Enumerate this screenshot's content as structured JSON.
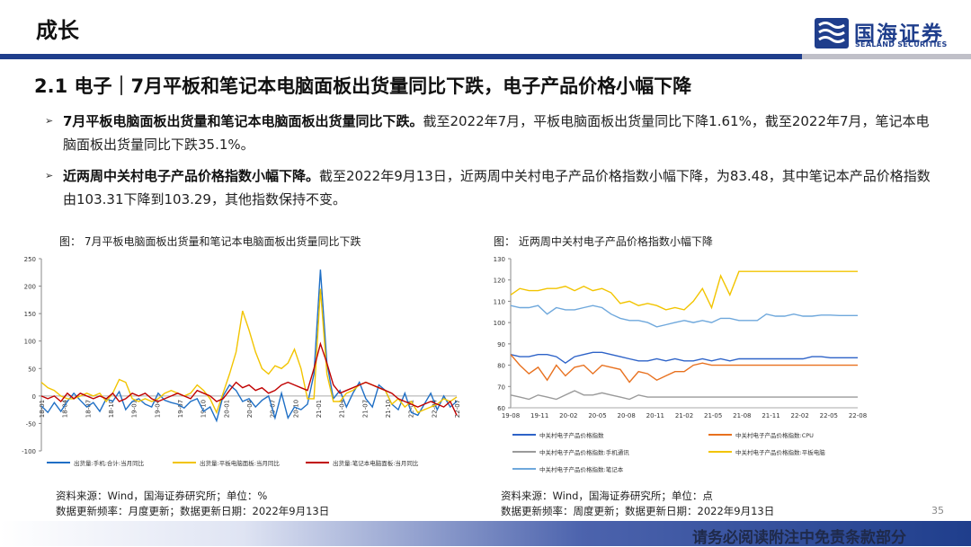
{
  "header": {
    "section": "成长",
    "logo_cn": "国海证券",
    "logo_en": "SEALAND SECURITIES"
  },
  "title": "2.1 电子｜7月平板和笔记本电脑面板出货量同比下跌，电子产品价格小幅下降",
  "bullets": [
    {
      "bold": "7月平板电脑面板出货量和笔记本电脑面板出货量同比下跌。",
      "text": "截至2022年7月，平板电脑面板出货量同比下降1.61%，截至2022年7月，笔记本电脑面板出货量同比下跌35.1%。"
    },
    {
      "bold": "近两周中关村电子产品价格指数小幅下降。",
      "text": "截至2022年9月13日，近两周中关村电子产品价格指数小幅下降，为83.48，其中笔记本产品价格指数由103.31下降到103.29，其他指数保持不变。"
    }
  ],
  "figures": {
    "left_title": "图：  7月平板电脑面板出货量和笔记本电脑面板出货量同比下跌",
    "right_title": "图：  近两周中关村电子产品价格指数小幅下降",
    "left_source": [
      "资料来源：Wind，国海证券研究所；单位：%",
      "数据更新频率：月度更新；数据更新日期：2022年9月13日"
    ],
    "right_source": [
      "资料来源：Wind，国海证券研究所；单位：点",
      "数据更新频率：周度更新；数据更新日期：2022年9月13日"
    ]
  },
  "page_number": "35",
  "footer": "请务必阅读附注中免责条款部分",
  "chart_data": [
    {
      "type": "line",
      "ylim": [
        -100,
        250
      ],
      "yticks": [
        -100,
        -50,
        0,
        50,
        100,
        150,
        200,
        250
      ],
      "xticks": [
        "18-01",
        "18-04",
        "18-07",
        "18-10",
        "19-01",
        "19-04",
        "19-07",
        "19-10",
        "20-01",
        "20-04",
        "20-07",
        "20-10",
        "21-01",
        "21-04",
        "21-07",
        "21-10",
        "22-01",
        "22-04",
        "22-07"
      ],
      "legend_position": "bottom",
      "series": [
        {
          "name": "出货量:手机:合计:当月同比",
          "color": "#1f6fc5",
          "values": [
            -18,
            -30,
            -12,
            -28,
            -10,
            5,
            -8,
            -20,
            -12,
            -28,
            -5,
            -10,
            8,
            -25,
            -10,
            -5,
            -15,
            -20,
            5,
            -8,
            -12,
            -15,
            -22,
            -10,
            -5,
            -28,
            -20,
            -45,
            0,
            20,
            10,
            -10,
            -5,
            -20,
            -8,
            0,
            -40,
            5,
            -40,
            -20,
            -25,
            -15,
            40,
            230,
            60,
            -5,
            10,
            -20,
            5,
            25,
            -5,
            -20,
            20,
            10,
            -15,
            -25,
            5,
            -30,
            -35,
            -15,
            5,
            -25,
            0,
            -20,
            -10
          ]
        },
        {
          "name": "出货量:平板电脑面板:当月同比",
          "color": "#f2c400",
          "values": [
            25,
            15,
            10,
            0,
            -5,
            -5,
            0,
            5,
            0,
            5,
            -10,
            5,
            30,
            25,
            -5,
            -10,
            -5,
            -10,
            -5,
            5,
            10,
            5,
            0,
            5,
            20,
            10,
            -5,
            -30,
            5,
            40,
            80,
            155,
            120,
            80,
            50,
            40,
            55,
            50,
            60,
            85,
            50,
            -5,
            -5,
            195,
            40,
            -10,
            -10,
            5,
            10,
            20,
            25,
            20,
            15,
            10,
            -15,
            -5,
            -20,
            -10,
            -30,
            -25,
            -20,
            -15,
            -5,
            -10,
            -2
          ]
        },
        {
          "name": "出货量:笔记本电脑面板:当月同比",
          "color": "#c00000",
          "values": [
            0,
            -5,
            0,
            -10,
            5,
            -5,
            5,
            0,
            -5,
            0,
            -5,
            5,
            -10,
            -5,
            5,
            0,
            5,
            -5,
            -10,
            -5,
            0,
            5,
            0,
            -5,
            10,
            5,
            0,
            -10,
            -5,
            10,
            25,
            15,
            20,
            10,
            15,
            5,
            10,
            20,
            25,
            20,
            15,
            10,
            50,
            95,
            60,
            20,
            5,
            10,
            15,
            20,
            25,
            20,
            15,
            10,
            5,
            -5,
            -10,
            -15,
            -20,
            -15,
            -10,
            -15,
            -20,
            -10,
            -35
          ]
        }
      ]
    },
    {
      "type": "line",
      "ylim": [
        60,
        130
      ],
      "yticks": [
        60,
        70,
        80,
        90,
        100,
        110,
        120,
        130
      ],
      "xticks": [
        "19-08",
        "19-11",
        "20-02",
        "20-05",
        "20-08",
        "20-11",
        "21-02",
        "21-05",
        "21-08",
        "21-11",
        "22-02",
        "22-05",
        "22-08"
      ],
      "legend_position": "bottom",
      "series": [
        {
          "name": "中关村电子产品价格指数",
          "color": "#2e63c8",
          "values": [
            85,
            84,
            84,
            85,
            85,
            84,
            81,
            84,
            85,
            86,
            86,
            85,
            84,
            83,
            82,
            82,
            83,
            82,
            83,
            82,
            82,
            83,
            82,
            83,
            82,
            83,
            83,
            83,
            83,
            83,
            83,
            83,
            83,
            84,
            84,
            83.5,
            83.5,
            83.5,
            83.48
          ]
        },
        {
          "name": "中关村电子产品价格指数:CPU",
          "color": "#e8711f",
          "values": [
            85,
            80,
            76,
            79,
            73,
            80,
            75,
            79,
            80,
            76,
            80,
            79,
            78,
            72,
            77,
            76,
            73,
            75,
            77,
            77,
            80,
            81,
            80,
            80,
            80,
            80,
            80,
            80,
            80,
            80,
            80,
            80,
            80,
            80,
            80,
            80,
            80,
            80,
            80
          ]
        },
        {
          "name": "中关村电子产品价格指数:手机通讯",
          "color": "#9a9a9a",
          "values": [
            66,
            65,
            64,
            66,
            65,
            64,
            66,
            68,
            66,
            66,
            67,
            66,
            65,
            64,
            66,
            65,
            65,
            65,
            65,
            65,
            65,
            65,
            65,
            65,
            65,
            65,
            65,
            65,
            65,
            65,
            65,
            65,
            65,
            65,
            65,
            65,
            65,
            65,
            65
          ]
        },
        {
          "name": "中关村电子产品价格指数:平板电脑",
          "color": "#f2c400",
          "values": [
            113,
            116,
            115,
            115,
            116,
            116,
            117,
            115,
            117,
            115,
            116,
            114,
            109,
            110,
            108,
            109,
            108,
            106,
            107,
            106,
            110,
            116,
            107,
            122,
            113,
            124,
            124,
            124,
            124,
            124,
            124,
            124,
            124,
            124,
            124,
            124,
            124,
            124,
            124
          ]
        },
        {
          "name": "中关村电子产品价格指数:笔记本",
          "color": "#6fa8dc",
          "values": [
            108,
            107,
            107,
            108,
            104,
            107,
            106,
            106,
            107,
            108,
            107,
            104,
            102,
            101,
            101,
            100,
            98,
            99,
            100,
            101,
            100,
            101,
            100,
            102,
            102,
            101,
            101,
            101,
            104,
            103,
            103,
            104,
            103,
            103,
            103.5,
            103.5,
            103.31,
            103.31,
            103.29
          ]
        }
      ]
    }
  ]
}
